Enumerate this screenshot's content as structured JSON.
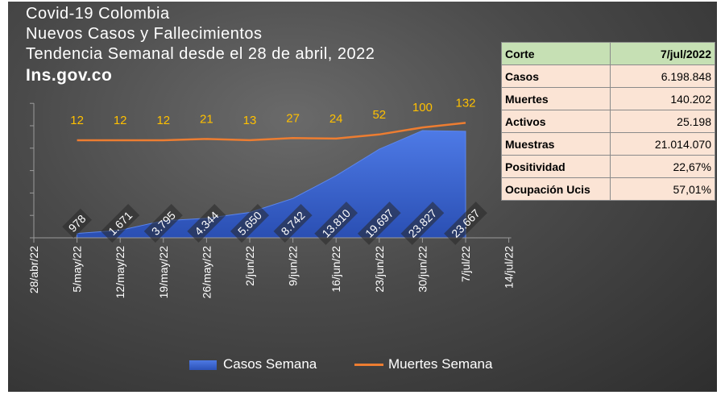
{
  "title": {
    "line1": "Covid-19 Colombia",
    "line2": "Nuevos Casos y Fallecimientos",
    "line3": "Tendencia Semanal desde el 28 de abril, 2022",
    "source": "Ins.gov.co"
  },
  "colors": {
    "cases": "#3a63d4",
    "deaths": "#ed7d31",
    "death_label": "#ffc000",
    "table_header": "#c6e0b4",
    "table_cell": "#fbe4d5"
  },
  "chart_data": {
    "type": "area",
    "categories": [
      "28/abr/22",
      "5/may/22",
      "12/may/22",
      "19/may/22",
      "26/may/22",
      "2/jun/22",
      "9/jun/22",
      "16/jun/22",
      "23/jun/22",
      "30/jun/22",
      "7/jul/22",
      "14/jul/22"
    ],
    "series": [
      {
        "name": "Casos Semana",
        "type": "area",
        "values": [
          null,
          978,
          1671,
          3795,
          4344,
          5650,
          8742,
          13810,
          19697,
          23827,
          23667,
          null
        ],
        "labels": [
          "",
          "978",
          "1.671",
          "3.795",
          "4.344",
          "5.650",
          "8.742",
          "13.810",
          "19.697",
          "23.827",
          "23.667",
          ""
        ]
      },
      {
        "name": "Muertes Semana",
        "type": "line",
        "values": [
          null,
          12,
          12,
          12,
          21,
          13,
          27,
          24,
          52,
          100,
          132,
          null
        ],
        "labels": [
          "",
          "12",
          "12",
          "12",
          "21",
          "13",
          "27",
          "24",
          "52",
          "100",
          "132",
          ""
        ]
      }
    ],
    "legend": "bottom"
  },
  "table": {
    "header": {
      "key": "Corte",
      "value": "7/jul/2022"
    },
    "rows": [
      {
        "key": "Casos",
        "value": "6.198.848"
      },
      {
        "key": "Muertes",
        "value": "140.202"
      },
      {
        "key": "Activos",
        "value": "25.198"
      },
      {
        "key": "Muestras",
        "value": "21.014.070"
      },
      {
        "key": "Positividad",
        "value": "22,67%"
      },
      {
        "key": "Ocupación Ucis",
        "value": "57,01%"
      }
    ]
  }
}
